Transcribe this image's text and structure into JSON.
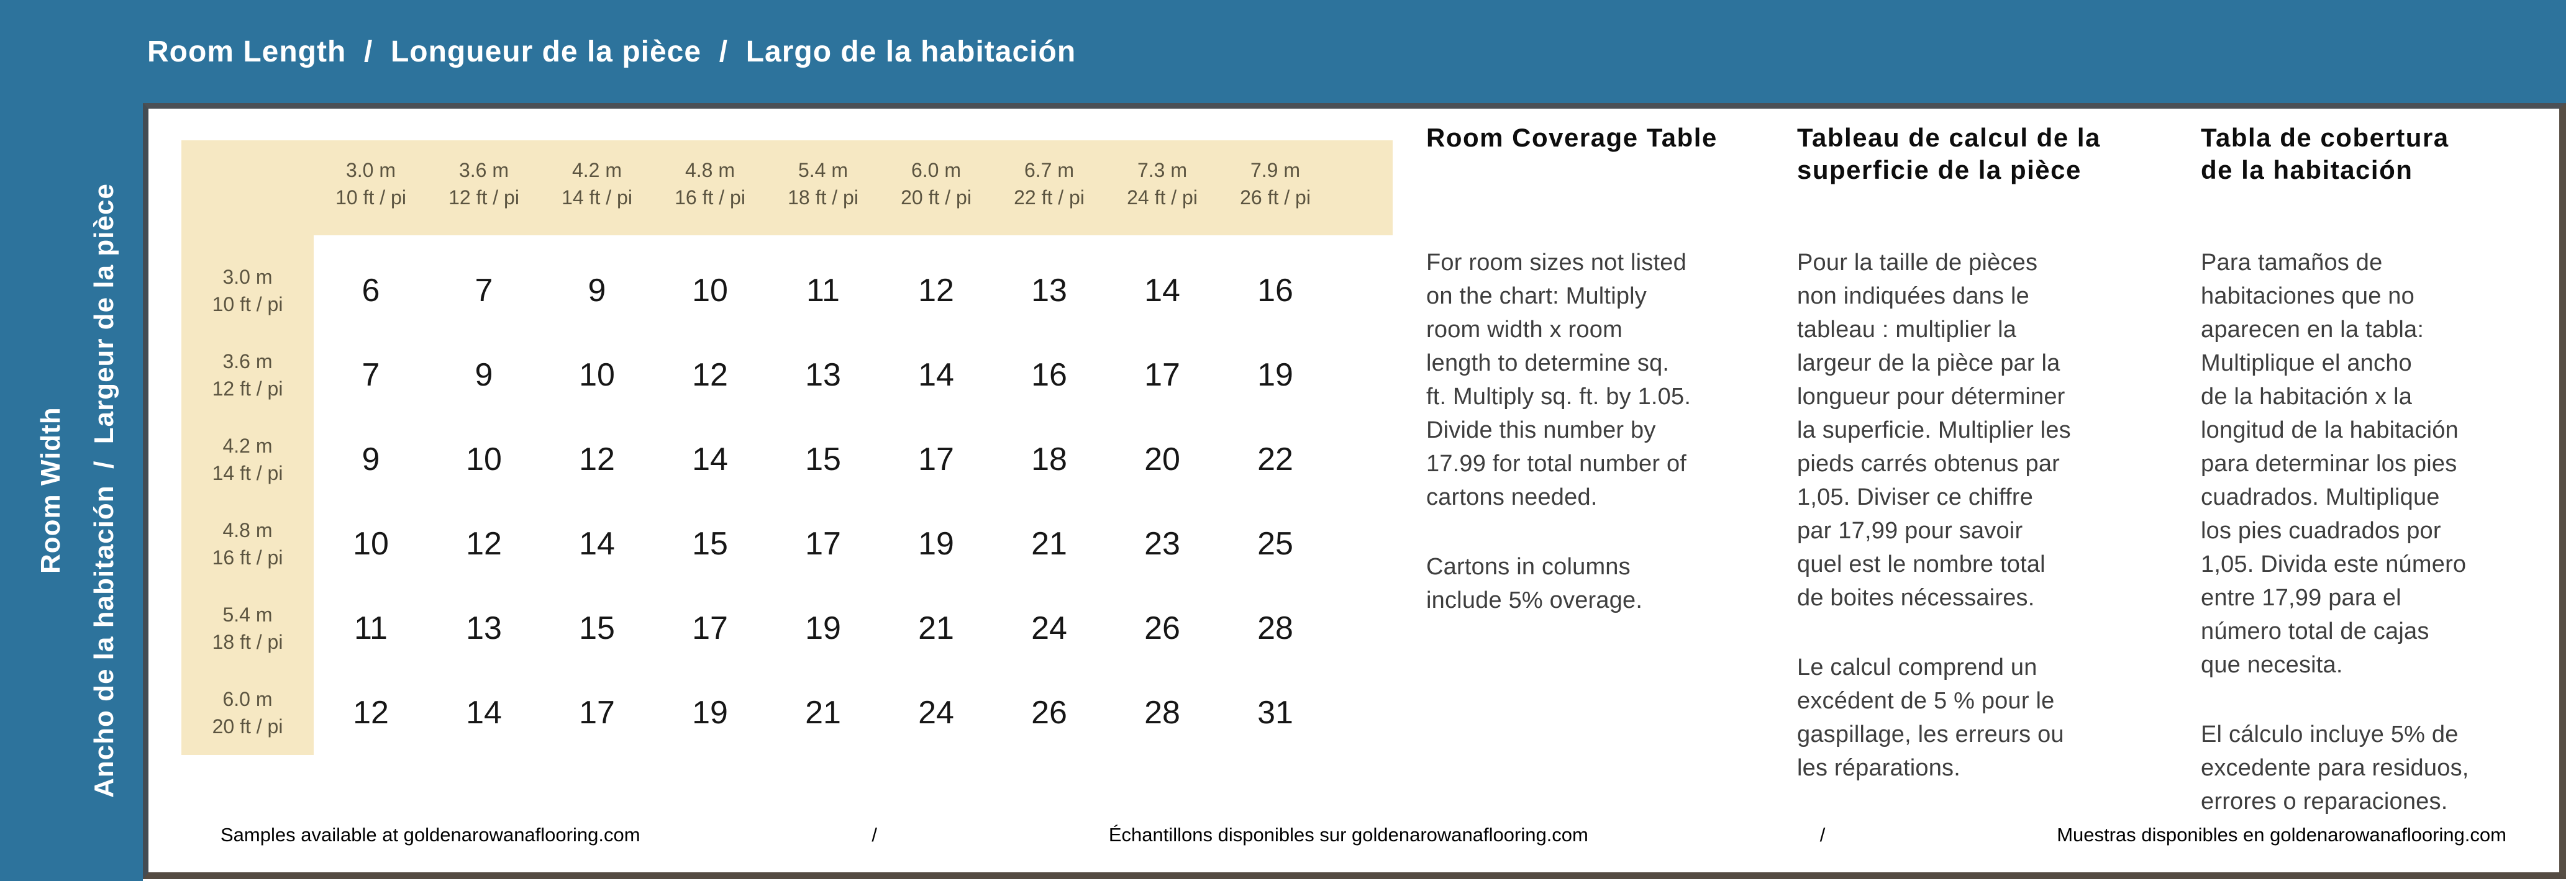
{
  "header": {
    "title": "Room Length  /  Longueur de la pièce  /  Largo de la habitación"
  },
  "sidebar": {
    "line_outer": "Room Width",
    "line_inner": "Ancho de la habitación  /  Largeur de la pièce"
  },
  "table": {
    "col_headers": [
      {
        "metric": "3.0 m",
        "imperial": "10 ft / pi"
      },
      {
        "metric": "3.6 m",
        "imperial": "12 ft / pi"
      },
      {
        "metric": "4.2 m",
        "imperial": "14 ft / pi"
      },
      {
        "metric": "4.8 m",
        "imperial": "16 ft / pi"
      },
      {
        "metric": "5.4 m",
        "imperial": "18 ft / pi"
      },
      {
        "metric": "6.0 m",
        "imperial": "20 ft / pi"
      },
      {
        "metric": "6.7 m",
        "imperial": "22 ft / pi"
      },
      {
        "metric": "7.3 m",
        "imperial": "24 ft / pi"
      },
      {
        "metric": "7.9 m",
        "imperial": "26 ft / pi"
      }
    ],
    "row_headers": [
      {
        "metric": "3.0 m",
        "imperial": "10 ft / pi"
      },
      {
        "metric": "3.6 m",
        "imperial": "12 ft / pi"
      },
      {
        "metric": "4.2 m",
        "imperial": "14 ft / pi"
      },
      {
        "metric": "4.8 m",
        "imperial": "16 ft / pi"
      },
      {
        "metric": "5.4 m",
        "imperial": "18 ft / pi"
      },
      {
        "metric": "6.0 m",
        "imperial": "20 ft / pi"
      }
    ],
    "values": [
      [
        6,
        7,
        9,
        10,
        11,
        12,
        13,
        14,
        16
      ],
      [
        7,
        9,
        10,
        12,
        13,
        14,
        16,
        17,
        19
      ],
      [
        9,
        10,
        12,
        14,
        15,
        17,
        18,
        20,
        22
      ],
      [
        10,
        12,
        14,
        15,
        17,
        19,
        21,
        23,
        25
      ],
      [
        11,
        13,
        15,
        17,
        19,
        21,
        24,
        26,
        28
      ],
      [
        12,
        14,
        17,
        19,
        21,
        24,
        26,
        28,
        31
      ]
    ]
  },
  "info_columns": {
    "en": {
      "title": "Room Coverage Table",
      "para1": "For room sizes not listed\non the chart: Multiply\nroom width x room\nlength to determine sq.\nft. Multiply sq. ft. by 1.05.\nDivide this number by\n17.99 for total number of\ncartons needed.",
      "para2": "Cartons in columns\ninclude 5% overage."
    },
    "fr": {
      "title": "Tableau de calcul de la\nsuperficie de la pièce",
      "para1": "Pour la taille de pièces\nnon indiquées dans le\ntableau :  multiplier la\nlargeur de la pièce par la\nlongueur pour déterminer\nla superficie. Multiplier les\npieds carrés obtenus par\n1,05. Diviser ce chiffre\npar 17,99 pour savoir\nquel est le nombre total\nde boites nécessaires.",
      "para2": "Le calcul comprend un\nexcédent de 5 % pour le\ngaspillage, les erreurs ou\nles réparations."
    },
    "es": {
      "title": "Tabla de cobertura\nde la habitación",
      "para1": "Para tamaños de\nhabitaciones que no\naparecen en la tabla:\nMultiplique el ancho\nde la habitación x la\nlongitud de la habitación\npara determinar los pies\ncuadrados. Multiplique\nlos pies cuadrados por\n1,05. Divida este número\nentre 17,99 para el\nnúmero total de cajas\nque necesita.",
      "para2": "El cálculo incluye 5% de\nexcedente para residuos,\nerrores o reparaciones."
    }
  },
  "footer": {
    "en": "Samples available at goldenarowanaflooring.com",
    "sep1": "/",
    "fr": "Échantillons disponibles sur goldenarowanaflooring.com",
    "sep2": "/",
    "es": "Muestras disponibles en goldenarowanaflooring.com"
  },
  "colors": {
    "blue": "#2d739c",
    "cream": "#f6e8c3",
    "headtext": "#5b5440",
    "bodytext": "#3e3e3e"
  }
}
